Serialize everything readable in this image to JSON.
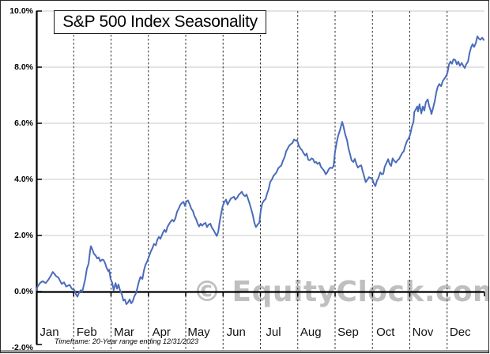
{
  "chart": {
    "title": "S&P 500 Index Seasonality",
    "watermark": "© EquityClock.com",
    "footnote": "Timeframe: 20-Year range ending 12/31/2023",
    "y_axis": {
      "labels": [
        "10.0%",
        "8.0%",
        "6.0%",
        "4.0%",
        "2.0%",
        "0.0%",
        "-2.0%"
      ],
      "values": [
        10,
        8,
        6,
        4,
        2,
        0,
        -2
      ]
    },
    "x_axis": {
      "months": [
        "Jan",
        "Feb",
        "Mar",
        "Apr",
        "May",
        "Jun",
        "Jul",
        "Aug",
        "Sep",
        "Oct",
        "Nov",
        "Dec"
      ]
    },
    "colors": {
      "line": "#4a6cba",
      "grid": "#c9c9c9",
      "axis": "#000000",
      "month_divider": "#2e2e2e",
      "watermark": "#bfbfbf",
      "bottom_rule": "#9c9c9c"
    }
  },
  "chart_data": {
    "type": "line",
    "title": "S&P 500 Index Seasonality",
    "xlabel": "",
    "ylabel": "",
    "ylim": [
      -2,
      10
    ],
    "ytick_labels": [
      "10.0%",
      "8.0%",
      "6.0%",
      "4.0%",
      "2.0%",
      "0.0%",
      "-2.0%"
    ],
    "categories": [
      "Jan",
      "Feb",
      "Mar",
      "Apr",
      "May",
      "Jun",
      "Jul",
      "Aug",
      "Sep",
      "Oct",
      "Nov",
      "Dec"
    ],
    "legend": "none",
    "grid": {
      "horizontal": "solid light gray every 2%",
      "vertical": "black dashed month separators"
    },
    "annotations": [
      "© EquityClock.com",
      "Timeframe: 20-Year range ending 12/31/2023"
    ],
    "x_unit": "month position (0 = Jan 1, 12 = Dec 31)",
    "y_unit": "percent cumulative seasonal change",
    "series": [
      {
        "name": "S&P 500 Index Seasonality",
        "color": "#4a6cba",
        "points": [
          [
            0,
            0.05
          ],
          [
            0.04,
            0.2
          ],
          [
            0.11,
            0.32
          ],
          [
            0.17,
            0.37
          ],
          [
            0.25,
            0.3
          ],
          [
            0.32,
            0.42
          ],
          [
            0.38,
            0.55
          ],
          [
            0.44,
            0.7
          ],
          [
            0.49,
            0.62
          ],
          [
            0.53,
            0.55
          ],
          [
            0.59,
            0.5
          ],
          [
            0.68,
            0.27
          ],
          [
            0.74,
            0.33
          ],
          [
            0.8,
            0.18
          ],
          [
            0.89,
            0.24
          ],
          [
            0.95,
            0.1
          ],
          [
            1.02,
            0.05
          ],
          [
            1.06,
            -0.1
          ],
          [
            1.1,
            -0.18
          ],
          [
            1.14,
            -0.05
          ],
          [
            1.19,
            0.05
          ],
          [
            1.23,
            0
          ],
          [
            1.27,
            0.22
          ],
          [
            1.31,
            0.45
          ],
          [
            1.35,
            0.8
          ],
          [
            1.4,
            1
          ],
          [
            1.44,
            1.45
          ],
          [
            1.46,
            1.62
          ],
          [
            1.5,
            1.5
          ],
          [
            1.54,
            1.35
          ],
          [
            1.59,
            1.28
          ],
          [
            1.63,
            1.18
          ],
          [
            1.67,
            1.22
          ],
          [
            1.71,
            1.08
          ],
          [
            1.76,
            1.14
          ],
          [
            1.8,
            1.12
          ],
          [
            1.84,
            1.02
          ],
          [
            1.88,
            0.85
          ],
          [
            1.93,
            0.72
          ],
          [
            1.95,
            0.78
          ],
          [
            1.99,
            0.45
          ],
          [
            2.03,
            0.32
          ],
          [
            2.07,
            0.05
          ],
          [
            2.12,
            0.3
          ],
          [
            2.16,
            0.1
          ],
          [
            2.2,
            0.25
          ],
          [
            2.24,
            0.05
          ],
          [
            2.29,
            -0.1
          ],
          [
            2.33,
            -0.32
          ],
          [
            2.37,
            -0.28
          ],
          [
            2.41,
            -0.45
          ],
          [
            2.46,
            -0.38
          ],
          [
            2.5,
            -0.28
          ],
          [
            2.54,
            -0.42
          ],
          [
            2.58,
            -0.35
          ],
          [
            2.62,
            -0.18
          ],
          [
            2.67,
            -0.05
          ],
          [
            2.71,
            0.15
          ],
          [
            2.75,
            0.37
          ],
          [
            2.79,
            0.52
          ],
          [
            2.84,
            0.45
          ],
          [
            2.88,
            0.75
          ],
          [
            2.92,
            0.95
          ],
          [
            2.96,
            1.05
          ],
          [
            3.03,
            1.3
          ],
          [
            3.07,
            1.45
          ],
          [
            3.11,
            1.55
          ],
          [
            3.15,
            1.7
          ],
          [
            3.2,
            1.65
          ],
          [
            3.24,
            1.85
          ],
          [
            3.28,
            1.95
          ],
          [
            3.32,
            1.88
          ],
          [
            3.39,
            2.1
          ],
          [
            3.43,
            2.2
          ],
          [
            3.47,
            2.12
          ],
          [
            3.51,
            2.3
          ],
          [
            3.56,
            2.42
          ],
          [
            3.6,
            2.5
          ],
          [
            3.64,
            2.56
          ],
          [
            3.68,
            2.5
          ],
          [
            3.72,
            2.6
          ],
          [
            3.77,
            2.85
          ],
          [
            3.81,
            2.95
          ],
          [
            3.85,
            3.08
          ],
          [
            3.89,
            3.15
          ],
          [
            3.94,
            3.2
          ],
          [
            3.98,
            3.05
          ],
          [
            4.02,
            3.22
          ],
          [
            4.06,
            3.25
          ],
          [
            4.11,
            3.1
          ],
          [
            4.15,
            2.95
          ],
          [
            4.19,
            2.88
          ],
          [
            4.23,
            2.7
          ],
          [
            4.28,
            2.58
          ],
          [
            4.32,
            2.42
          ],
          [
            4.36,
            2.32
          ],
          [
            4.4,
            2.42
          ],
          [
            4.44,
            2.35
          ],
          [
            4.49,
            2.42
          ],
          [
            4.53,
            2.45
          ],
          [
            4.57,
            2.3
          ],
          [
            4.61,
            2.38
          ],
          [
            4.66,
            2.42
          ],
          [
            4.7,
            2.28
          ],
          [
            4.74,
            2.2
          ],
          [
            4.78,
            2.1
          ],
          [
            4.83,
            1.98
          ],
          [
            4.87,
            2.12
          ],
          [
            4.91,
            2.5
          ],
          [
            4.95,
            2.78
          ],
          [
            4.99,
            3.05
          ],
          [
            5.04,
            3.2
          ],
          [
            5.08,
            3.28
          ],
          [
            5.12,
            3.1
          ],
          [
            5.16,
            3.2
          ],
          [
            5.21,
            3.32
          ],
          [
            5.25,
            3.35
          ],
          [
            5.29,
            3.38
          ],
          [
            5.33,
            3.28
          ],
          [
            5.38,
            3.35
          ],
          [
            5.42,
            3.45
          ],
          [
            5.46,
            3.5
          ],
          [
            5.5,
            3.56
          ],
          [
            5.54,
            3.45
          ],
          [
            5.59,
            3.4
          ],
          [
            5.63,
            3.46
          ],
          [
            5.67,
            3.3
          ],
          [
            5.71,
            3.14
          ],
          [
            5.76,
            2.9
          ],
          [
            5.8,
            2.7
          ],
          [
            5.84,
            2.45
          ],
          [
            5.88,
            2.3
          ],
          [
            5.93,
            2.4
          ],
          [
            5.97,
            2.45
          ],
          [
            6.01,
            2.9
          ],
          [
            6.05,
            3.15
          ],
          [
            6.1,
            3.25
          ],
          [
            6.14,
            3.3
          ],
          [
            6.18,
            3.5
          ],
          [
            6.22,
            3.65
          ],
          [
            6.26,
            3.9
          ],
          [
            6.31,
            4
          ],
          [
            6.35,
            4.12
          ],
          [
            6.39,
            4.18
          ],
          [
            6.43,
            4.25
          ],
          [
            6.48,
            4.4
          ],
          [
            6.52,
            4.45
          ],
          [
            6.56,
            4.5
          ],
          [
            6.6,
            4.65
          ],
          [
            6.65,
            4.8
          ],
          [
            6.69,
            5
          ],
          [
            6.73,
            5.1
          ],
          [
            6.77,
            5.2
          ],
          [
            6.81,
            5.25
          ],
          [
            6.86,
            5.3
          ],
          [
            6.9,
            5.42
          ],
          [
            6.94,
            5.38
          ],
          [
            6.98,
            5.4
          ],
          [
            7.03,
            5.2
          ],
          [
            7.07,
            5.1
          ],
          [
            7.11,
            5.05
          ],
          [
            7.15,
            4.95
          ],
          [
            7.2,
            4.85
          ],
          [
            7.24,
            4.92
          ],
          [
            7.28,
            4.7
          ],
          [
            7.32,
            4.68
          ],
          [
            7.37,
            4.75
          ],
          [
            7.41,
            4.72
          ],
          [
            7.45,
            4.6
          ],
          [
            7.49,
            4.62
          ],
          [
            7.53,
            4.55
          ],
          [
            7.58,
            4.6
          ],
          [
            7.62,
            4.45
          ],
          [
            7.66,
            4.38
          ],
          [
            7.7,
            4.32
          ],
          [
            7.75,
            4.18
          ],
          [
            7.79,
            4.25
          ],
          [
            7.83,
            4.36
          ],
          [
            7.87,
            4.42
          ],
          [
            7.92,
            4.4
          ],
          [
            7.96,
            4.48
          ],
          [
            8,
            5
          ],
          [
            8.04,
            5.3
          ],
          [
            8.08,
            5.55
          ],
          [
            8.13,
            5.75
          ],
          [
            8.17,
            5.95
          ],
          [
            8.19,
            6.05
          ],
          [
            8.23,
            5.85
          ],
          [
            8.27,
            5.6
          ],
          [
            8.32,
            5.4
          ],
          [
            8.36,
            5.1
          ],
          [
            8.4,
            4.9
          ],
          [
            8.44,
            4.68
          ],
          [
            8.49,
            4.62
          ],
          [
            8.53,
            4.73
          ],
          [
            8.57,
            4.55
          ],
          [
            8.61,
            4.42
          ],
          [
            8.66,
            4.48
          ],
          [
            8.7,
            4.5
          ],
          [
            8.74,
            4.28
          ],
          [
            8.78,
            4.1
          ],
          [
            8.82,
            3.9
          ],
          [
            8.87,
            4
          ],
          [
            8.91,
            4.08
          ],
          [
            8.95,
            4.05
          ],
          [
            8.99,
            4.03
          ],
          [
            9.04,
            3.85
          ],
          [
            9.08,
            3.76
          ],
          [
            9.12,
            3.95
          ],
          [
            9.16,
            4.05
          ],
          [
            9.21,
            4.25
          ],
          [
            9.25,
            4.18
          ],
          [
            9.29,
            4.2
          ],
          [
            9.33,
            4.45
          ],
          [
            9.38,
            4.6
          ],
          [
            9.42,
            4.72
          ],
          [
            9.46,
            4.55
          ],
          [
            9.5,
            4.48
          ],
          [
            9.54,
            4.75
          ],
          [
            9.59,
            4.65
          ],
          [
            9.63,
            4.6
          ],
          [
            9.67,
            4.68
          ],
          [
            9.71,
            4.72
          ],
          [
            9.76,
            4.85
          ],
          [
            9.8,
            4.95
          ],
          [
            9.84,
            5
          ],
          [
            9.88,
            5.2
          ],
          [
            9.93,
            5.38
          ],
          [
            9.97,
            5.45
          ],
          [
            10.01,
            5.6
          ],
          [
            10.05,
            5.85
          ],
          [
            10.1,
            6.05
          ],
          [
            10.12,
            6.4
          ],
          [
            10.16,
            6.5
          ],
          [
            10.2,
            6.6
          ],
          [
            10.22,
            6.42
          ],
          [
            10.26,
            6.68
          ],
          [
            10.31,
            6.35
          ],
          [
            10.35,
            6.6
          ],
          [
            10.39,
            6.45
          ],
          [
            10.43,
            6.75
          ],
          [
            10.48,
            6.85
          ],
          [
            10.52,
            6.6
          ],
          [
            10.56,
            6.45
          ],
          [
            10.58,
            6.33
          ],
          [
            10.62,
            6.52
          ],
          [
            10.67,
            6.8
          ],
          [
            10.71,
            7.1
          ],
          [
            10.75,
            7.3
          ],
          [
            10.79,
            7.4
          ],
          [
            10.84,
            7.32
          ],
          [
            10.88,
            7.5
          ],
          [
            10.92,
            7.58
          ],
          [
            10.96,
            7.65
          ],
          [
            11.01,
            7.8
          ],
          [
            11.05,
            8.1
          ],
          [
            11.09,
            8.2
          ],
          [
            11.13,
            8.12
          ],
          [
            11.17,
            8.28
          ],
          [
            11.22,
            8.25
          ],
          [
            11.26,
            8.1
          ],
          [
            11.3,
            8.2
          ],
          [
            11.34,
            8.05
          ],
          [
            11.39,
            8.15
          ],
          [
            11.43,
            8.05
          ],
          [
            11.47,
            7.97
          ],
          [
            11.51,
            8.1
          ],
          [
            11.56,
            8.2
          ],
          [
            11.6,
            8.5
          ],
          [
            11.64,
            8.7
          ],
          [
            11.68,
            8.82
          ],
          [
            11.72,
            8.72
          ],
          [
            11.77,
            8.86
          ],
          [
            11.81,
            9.1
          ],
          [
            11.85,
            9.02
          ],
          [
            11.89,
            8.98
          ],
          [
            11.94,
            9.05
          ],
          [
            11.98,
            8.97
          ]
        ]
      }
    ]
  }
}
